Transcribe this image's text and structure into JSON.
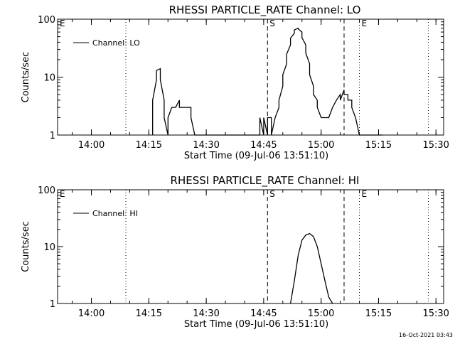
{
  "chart_data": [
    {
      "type": "line",
      "title": "RHESSI PARTICLE_RATE Channel: LO",
      "xlabel": "Start Time (09-Jul-06 13:51:10)",
      "ylabel": "Counts/sec",
      "yscale": "log",
      "ylim": [
        1,
        100
      ],
      "xlim_minutes_after_13:00": [
        51.17,
        152.0
      ],
      "x_tick_labels": [
        "14:00",
        "14:15",
        "14:30",
        "14:45",
        "15:00",
        "15:15",
        "15:30"
      ],
      "y_tick_labels": [
        "1",
        "10",
        "100"
      ],
      "legend": "top-left",
      "markers": [
        {
          "time": "14:09",
          "style": "dotted",
          "label": ""
        },
        {
          "time": "14:46",
          "style": "dashed",
          "label": "S"
        },
        {
          "time": "15:06",
          "style": "dashed",
          "label": ""
        },
        {
          "time": "15:10",
          "style": "dotted",
          "label": "E"
        },
        {
          "time": "15:28",
          "style": "dotted",
          "label": ""
        },
        {
          "time": "13:51",
          "style": "none",
          "label": "E"
        }
      ],
      "series": [
        {
          "name": "Channel: LO",
          "x": [
            "14:16",
            "14:16",
            "14:17",
            "14:17",
            "14:18",
            "14:18",
            "14:19",
            "14:19",
            "14:20",
            "14:20",
            "14:21",
            "14:21",
            "14:22",
            "14:22",
            "14:23",
            "14:23",
            "14:24",
            "14:24",
            "14:25",
            "14:25",
            "14:26",
            "14:26",
            "14:27",
            "14:27",
            "14:28",
            "14:28",
            "14:29",
            "14:29",
            "14:30",
            "14:30",
            "14:31",
            "14:31",
            "14:44",
            "14:44",
            "14:45",
            "14:45",
            "14:46",
            "14:46",
            "14:47",
            "14:47",
            "14:48",
            "14:48",
            "14:49",
            "14:49",
            "14:50",
            "14:50",
            "14:51",
            "14:51",
            "14:52",
            "14:52",
            "14:53",
            "14:53",
            "14:54",
            "14:54",
            "14:55",
            "14:55",
            "14:56",
            "14:56",
            "14:57",
            "14:57",
            "14:58",
            "14:58",
            "14:59",
            "14:59",
            "15:00",
            "15:00",
            "15:01",
            "15:01",
            "15:02",
            "15:02",
            "15:03",
            "15:03",
            "15:04",
            "15:04",
            "15:05",
            "15:05",
            "15:06",
            "15:06",
            "15:07",
            "15:07",
            "15:08",
            "15:08",
            "15:09",
            "15:09",
            "15:10",
            "15:10",
            "15:11",
            "15:11",
            "15:12",
            "15:12",
            "15:13",
            "15:13",
            "15:14",
            "15:14",
            "15:15",
            "15:15",
            "15:16",
            "15:16"
          ],
          "y": [
            1,
            4,
            9,
            13,
            14,
            9,
            4,
            2,
            1,
            2,
            3,
            3,
            3,
            3,
            4,
            3,
            3,
            3,
            3,
            3,
            3,
            2,
            1,
            1,
            1,
            1,
            1,
            1,
            1,
            1,
            1,
            1,
            1,
            2,
            1,
            2,
            1,
            2,
            2,
            1,
            2,
            2,
            3,
            4,
            7,
            11,
            17,
            25,
            36,
            47,
            57,
            65,
            70,
            68,
            60,
            48,
            36,
            26,
            17,
            11,
            7,
            5,
            4,
            3,
            2,
            2,
            2,
            2,
            2,
            2,
            3,
            3,
            4,
            4,
            5,
            4,
            6,
            5,
            5,
            4,
            4,
            3,
            2,
            2,
            1,
            1,
            1,
            1,
            1,
            1,
            1,
            1,
            1,
            1,
            1,
            1,
            1,
            1
          ]
        }
      ]
    },
    {
      "type": "line",
      "title": "RHESSI PARTICLE_RATE Channel: HI",
      "xlabel": "Start Time (09-Jul-06 13:51:10)",
      "ylabel": "Counts/sec",
      "yscale": "log",
      "ylim": [
        1,
        100
      ],
      "xlim_minutes_after_13:00": [
        51.17,
        152.0
      ],
      "x_tick_labels": [
        "14:00",
        "14:15",
        "14:30",
        "14:45",
        "15:00",
        "15:15",
        "15:30"
      ],
      "y_tick_labels": [
        "1",
        "10",
        "100"
      ],
      "legend": "top-left",
      "markers": [
        {
          "time": "14:09",
          "style": "dotted",
          "label": ""
        },
        {
          "time": "14:46",
          "style": "dashed",
          "label": "S"
        },
        {
          "time": "15:06",
          "style": "dashed",
          "label": ""
        },
        {
          "time": "15:10",
          "style": "dotted",
          "label": "E"
        },
        {
          "time": "15:28",
          "style": "dotted",
          "label": ""
        },
        {
          "time": "13:51",
          "style": "none",
          "label": "E"
        }
      ],
      "series": [
        {
          "name": "Channel: HI",
          "x": [
            "14:52",
            "14:53",
            "14:54",
            "14:55",
            "14:56",
            "14:57",
            "14:58",
            "14:59",
            "15:00",
            "15:01",
            "15:02",
            "15:03"
          ],
          "y": [
            1,
            2.5,
            7,
            13,
            16,
            17,
            15,
            10,
            5,
            2.5,
            1.3,
            1
          ]
        }
      ]
    }
  ],
  "timestamp": "16-Oct-2021 03:43"
}
